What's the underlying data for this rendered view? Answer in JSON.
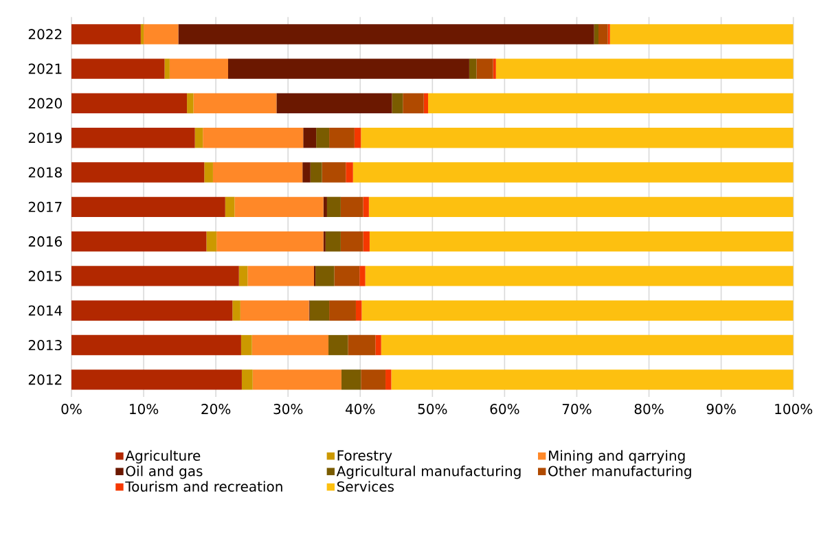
{
  "chart_data": {
    "type": "bar",
    "orientation": "horizontal",
    "stacked": true,
    "categories": [
      "2022",
      "2021",
      "2020",
      "2019",
      "2018",
      "2017",
      "2016",
      "2015",
      "2014",
      "2013",
      "2012"
    ],
    "series": [
      {
        "name": "Agriculture",
        "color": "#b22800",
        "values": [
          9.6,
          12.9,
          16.0,
          17.1,
          18.4,
          21.3,
          18.7,
          23.2,
          22.3,
          23.5,
          23.6
        ]
      },
      {
        "name": "Forestry",
        "color": "#cc9900",
        "values": [
          0.4,
          0.7,
          0.9,
          1.1,
          1.2,
          1.3,
          1.4,
          1.2,
          1.1,
          1.5,
          1.5
        ]
      },
      {
        "name": "Mining and qarrying",
        "color": "#ff8828",
        "values": [
          4.8,
          8.1,
          11.5,
          13.9,
          12.4,
          12.3,
          14.8,
          9.2,
          9.5,
          10.6,
          12.3
        ]
      },
      {
        "name": "Oil and gas",
        "color": "#6b1800",
        "values": [
          57.6,
          33.4,
          16.0,
          1.8,
          1.1,
          0.5,
          0.3,
          0.2,
          0.1,
          0,
          0
        ]
      },
      {
        "name": "Agricultural manufacturing",
        "color": "#7a5c00",
        "values": [
          0.6,
          1.0,
          1.5,
          1.8,
          1.6,
          1.9,
          2.1,
          2.6,
          2.7,
          2.7,
          2.7
        ]
      },
      {
        "name": "Other manufacturing",
        "color": "#b04a00",
        "values": [
          1.3,
          2.3,
          2.9,
          3.5,
          3.3,
          3.1,
          3.1,
          3.5,
          3.7,
          3.8,
          3.4
        ]
      },
      {
        "name": "Tourism and recreation",
        "color": "#f53800",
        "values": [
          0.3,
          0.4,
          0.6,
          0.9,
          1.0,
          0.8,
          0.9,
          0.8,
          0.8,
          0.8,
          0.8
        ]
      },
      {
        "name": "Services",
        "color": "#fdc010",
        "values": [
          25.4,
          41.2,
          50.6,
          59.9,
          61.0,
          58.8,
          58.7,
          59.3,
          59.8,
          57.1,
          55.7
        ]
      }
    ],
    "xlim": [
      0,
      100
    ],
    "xticks": [
      {
        "value": 0,
        "label": "0%"
      },
      {
        "value": 10,
        "label": "10%"
      },
      {
        "value": 20,
        "label": "20%"
      },
      {
        "value": 30,
        "label": "30%"
      },
      {
        "value": 40,
        "label": "40%"
      },
      {
        "value": 50,
        "label": "50%"
      },
      {
        "value": 60,
        "label": "60%"
      },
      {
        "value": 70,
        "label": "70%"
      },
      {
        "value": 80,
        "label": "80%"
      },
      {
        "value": 90,
        "label": "90%"
      },
      {
        "value": 100,
        "label": "100%"
      }
    ],
    "grid": "x",
    "legend": "bottom"
  }
}
